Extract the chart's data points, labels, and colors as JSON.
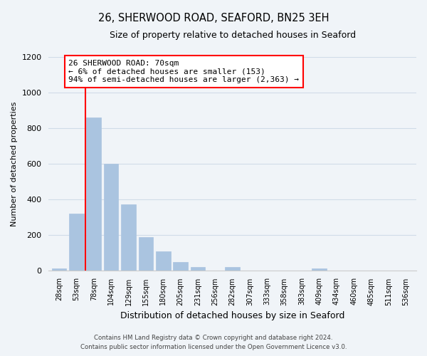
{
  "title": "26, SHERWOOD ROAD, SEAFORD, BN25 3EH",
  "subtitle": "Size of property relative to detached houses in Seaford",
  "xlabel": "Distribution of detached houses by size in Seaford",
  "ylabel": "Number of detached properties",
  "bar_labels": [
    "28sqm",
    "53sqm",
    "78sqm",
    "104sqm",
    "129sqm",
    "155sqm",
    "180sqm",
    "205sqm",
    "231sqm",
    "256sqm",
    "282sqm",
    "307sqm",
    "333sqm",
    "358sqm",
    "383sqm",
    "409sqm",
    "434sqm",
    "460sqm",
    "485sqm",
    "511sqm",
    "536sqm"
  ],
  "bar_values": [
    10,
    320,
    860,
    600,
    370,
    185,
    105,
    45,
    20,
    0,
    20,
    0,
    0,
    0,
    0,
    10,
    0,
    0,
    0,
    0,
    0
  ],
  "bar_color": "#aac4e0",
  "bar_edge_color": "#aac4e0",
  "vline_color": "red",
  "vline_x_index": 1.5,
  "annotation_title": "26 SHERWOOD ROAD: 70sqm",
  "annotation_line1": "← 6% of detached houses are smaller (153)",
  "annotation_line2": "94% of semi-detached houses are larger (2,363) →",
  "annotation_box_color": "white",
  "annotation_box_edge": "red",
  "ylim": [
    0,
    1200
  ],
  "yticks": [
    0,
    200,
    400,
    600,
    800,
    1000,
    1200
  ],
  "footer1": "Contains HM Land Registry data © Crown copyright and database right 2024.",
  "footer2": "Contains public sector information licensed under the Open Government Licence v3.0.",
  "bg_color": "#f0f4f8"
}
